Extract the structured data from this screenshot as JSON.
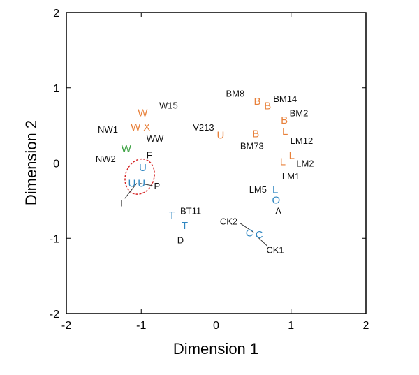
{
  "chart_data": {
    "type": "scatter",
    "xlabel": "Dimension 1",
    "ylabel": "Dimension 2",
    "xlim": [
      -2,
      2
    ],
    "ylim": [
      -2,
      2
    ],
    "xticks": [
      -2,
      -1,
      0,
      1,
      2
    ],
    "yticks": [
      -2,
      -1,
      0,
      1,
      2
    ],
    "grid": false,
    "colors": {
      "orange": "#E8803A",
      "blue": "#2E86C1",
      "green": "#3AA040",
      "ellipse": "#D62828"
    },
    "points": [
      {
        "marker": "W",
        "color": "orange",
        "x": -0.98,
        "y": 0.67
      },
      {
        "marker": "W",
        "color": "orange",
        "x": -1.04,
        "y": 0.48
      },
      {
        "marker": "X",
        "color": "orange",
        "x": -0.96,
        "y": 0.48
      },
      {
        "marker": "W",
        "color": "green",
        "x": -1.2,
        "y": 0.19
      },
      {
        "marker": "U",
        "color": "blue",
        "x": -0.98,
        "y": -0.06
      },
      {
        "marker": "U",
        "color": "blue",
        "x": -1.07,
        "y": -0.27
      },
      {
        "marker": "U",
        "color": "blue",
        "x": -1.05,
        "y": -0.27
      },
      {
        "marker": "U",
        "color": "orange",
        "x": 0.06,
        "y": 0.37
      },
      {
        "marker": "B",
        "color": "orange",
        "x": 0.55,
        "y": 0.82
      },
      {
        "marker": "B",
        "color": "orange",
        "x": 0.7,
        "y": 0.76
      },
      {
        "marker": "B",
        "color": "orange",
        "x": 0.91,
        "y": 0.56
      },
      {
        "marker": "B",
        "color": "orange",
        "x": 0.53,
        "y": 0.39
      },
      {
        "marker": "L",
        "color": "orange",
        "x": 0.92,
        "y": 0.43
      },
      {
        "marker": "L",
        "color": "orange",
        "x": 1.01,
        "y": 0.1
      },
      {
        "marker": "L",
        "color": "orange",
        "x": 0.89,
        "y": 0.02
      },
      {
        "marker": "L",
        "color": "blue",
        "x": 0.79,
        "y": -0.41
      },
      {
        "marker": "O",
        "color": "blue",
        "x": 0.8,
        "y": -0.47
      },
      {
        "marker": "C",
        "color": "blue",
        "x": 0.5,
        "y": -0.93
      },
      {
        "marker": "C",
        "color": "blue",
        "x": 0.52,
        "y": -0.95
      },
      {
        "marker": "T",
        "color": "blue",
        "x": -0.59,
        "y": -0.69
      },
      {
        "marker": "T",
        "color": "blue",
        "x": -0.42,
        "y": -0.83
      }
    ],
    "annotations": [
      {
        "text": "W15",
        "x": -0.76,
        "y": 0.77
      },
      {
        "text": "NW1",
        "x": -1.58,
        "y": 0.45
      },
      {
        "text": "WW",
        "x": -0.93,
        "y": 0.33
      },
      {
        "text": "NW2",
        "x": -1.61,
        "y": 0.06
      },
      {
        "text": "F",
        "x": -0.93,
        "y": 0.11
      },
      {
        "text": "P",
        "x": -0.83,
        "y": -0.3
      },
      {
        "text": "I",
        "x": -1.28,
        "y": -0.53
      },
      {
        "text": "V213",
        "x": -0.31,
        "y": 0.48
      },
      {
        "text": "BM8",
        "x": 0.13,
        "y": 0.93
      },
      {
        "text": "BM14",
        "x": 0.75,
        "y": 0.86
      },
      {
        "text": "BM2",
        "x": 0.98,
        "y": 0.67
      },
      {
        "text": "BM73",
        "x": 0.32,
        "y": 0.23
      },
      {
        "text": "LM12",
        "x": 0.99,
        "y": 0.3
      },
      {
        "text": "LM2",
        "x": 1.07,
        "y": 0.0
      },
      {
        "text": "LM1",
        "x": 0.88,
        "y": -0.17
      },
      {
        "text": "LM5",
        "x": 0.44,
        "y": -0.35
      },
      {
        "text": "A",
        "x": 0.79,
        "y": -0.6
      },
      {
        "text": "BT11",
        "x": -0.48,
        "y": -0.63
      },
      {
        "text": "D",
        "x": -0.52,
        "y": -1.02
      },
      {
        "text": "CK2",
        "x": 0.05,
        "y": -0.77
      },
      {
        "text": "CK1",
        "x": 0.67,
        "y": -1.15
      }
    ],
    "leader_lines": [
      {
        "from": [
          -1.06,
          -0.27
        ],
        "to": [
          -1.22,
          -0.47
        ]
      },
      {
        "from": [
          -1.02,
          -0.27
        ],
        "to": [
          -0.85,
          -0.3
        ]
      },
      {
        "from": [
          0.5,
          -0.92
        ],
        "to": [
          0.32,
          -0.8
        ]
      },
      {
        "from": [
          0.53,
          -0.96
        ],
        "to": [
          0.68,
          -1.1
        ]
      }
    ],
    "ellipse": {
      "cx": -1.02,
      "cy": -0.18,
      "rx": 0.19,
      "ry": 0.24
    }
  }
}
